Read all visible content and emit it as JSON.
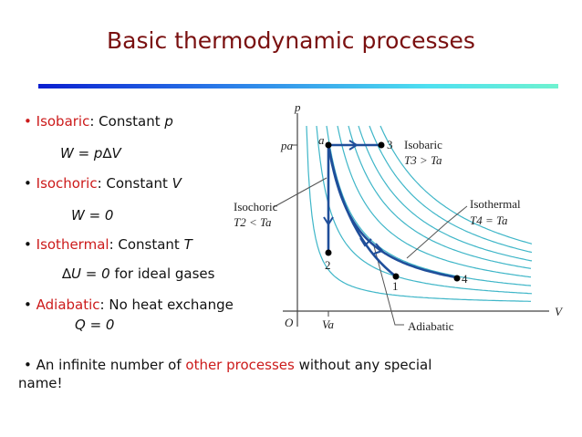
{
  "title": "Basic thermodynamic processes",
  "colors": {
    "title": "#7a1010",
    "highlight": "#cc1b1b",
    "isotherm": "#3fb6c8",
    "process": "#1f4e9a"
  },
  "bullets": [
    {
      "bullet": "•",
      "term": "Isobaric",
      "rest": ": Constant ",
      "var": "p",
      "formula": "W = p∆V"
    },
    {
      "bullet": "•",
      "term": "Isochoric",
      "rest": ": Constant ",
      "var": "V",
      "formula": "W = 0"
    },
    {
      "bullet": "•",
      "term": "Isothermal",
      "rest": ": Constant ",
      "var": "T",
      "formula": "∆U = 0",
      "formula_note": " for ideal gases"
    },
    {
      "bullet": "•",
      "term": "Adiabatic",
      "rest": ": No heat exchange",
      "var": "",
      "formula": "Q = 0"
    }
  ],
  "last_bullet": {
    "bullet": "•",
    "pre": "An infinite number of ",
    "term": "other processes",
    "post": " without any special",
    "line2": "name!"
  },
  "diagram": {
    "y_axis": "p",
    "x_axis": "V",
    "origin": "O",
    "pa": "pa",
    "va": "Va",
    "points": {
      "a": "a",
      "p3": "3",
      "p2": "2",
      "p1": "1",
      "p4": "4"
    },
    "isobaric": "Isobaric",
    "isobaric_rel": "T3 > Ta",
    "isochoric": "Isochoric",
    "isochoric_rel": "T2 < Ta",
    "isothermal": "Isothermal",
    "isothermal_rel": "T4 = Ta",
    "adiabatic": "Adiabatic"
  }
}
